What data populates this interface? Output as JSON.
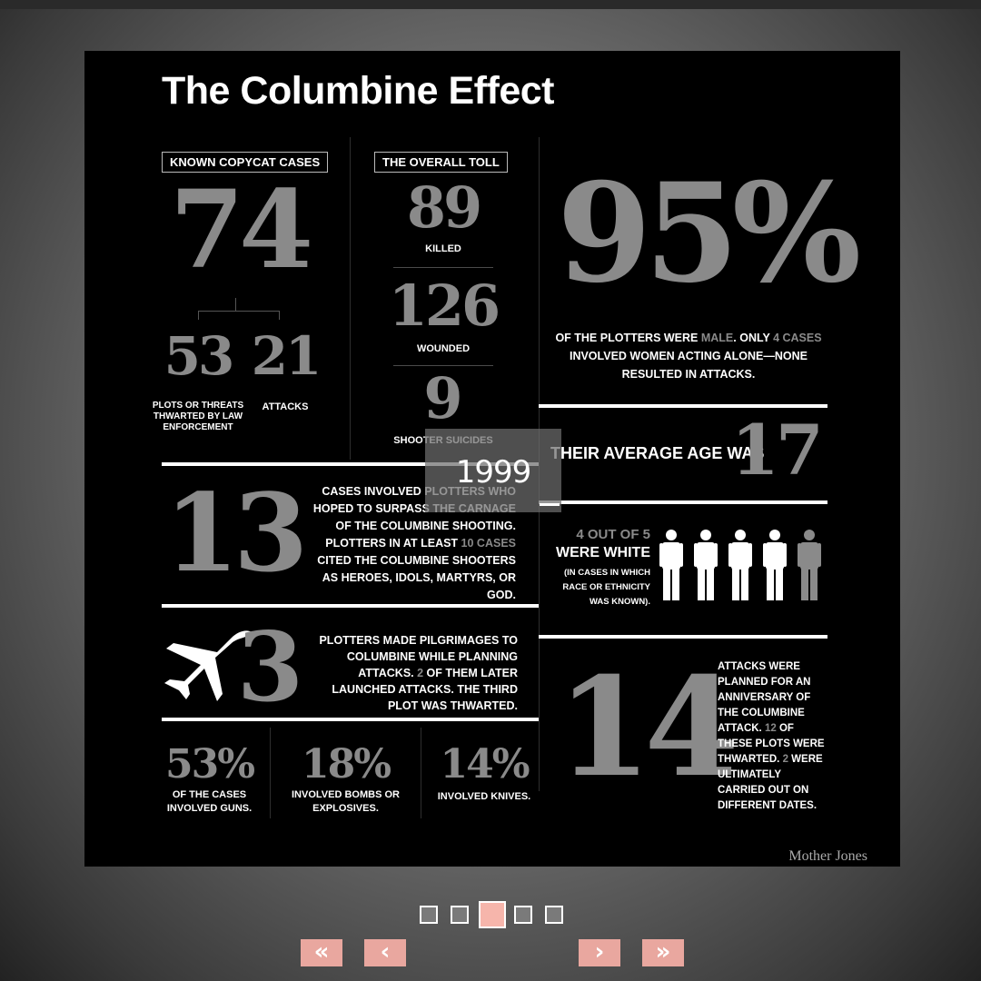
{
  "slide": {
    "title": "The Columbine Effect",
    "copycat": {
      "label": "KNOWN COPYCAT CASES",
      "total": "74",
      "thwarted_num": "53",
      "thwarted_label": "PLOTS OR THREATS THWARTED BY LAW ENFORCEMENT",
      "attacks_num": "21",
      "attacks_label": "ATTACKS"
    },
    "toll": {
      "label": "THE OVERALL TOLL",
      "killed_num": "89",
      "killed_label": "KILLED",
      "wounded_num": "126",
      "wounded_label": "WOUNDED",
      "suicides_num": "9",
      "suicides_label": "SHOOTER SUICIDES"
    },
    "male": {
      "percent": "95%",
      "text_a": "OF THE PLOTTERS WERE ",
      "text_b": "MALE",
      "text_c": ". ONLY ",
      "text_d": "4 CASES",
      "text_e": " INVOLVED WOMEN ACTING ALONE—NONE RESULTED IN ATTACKS."
    },
    "age": {
      "text": "THEIR AVERAGE AGE WAS",
      "num": "17"
    },
    "white": {
      "top": "4 OUT OF 5",
      "mid": "WERE WHITE",
      "note": "(IN CASES IN WHICH RACE OR ETHNICITY WAS KNOWN)."
    },
    "surpass": {
      "num": "13",
      "text_a": "CASES INVOLVED PLOTTERS WHO HOPED TO SURPASS THE CARNAGE OF THE COLUMBINE SHOOTING. PLOTTERS IN AT LEAST ",
      "text_b": "10 CASES",
      "text_c": " CITED THE COLUMBINE SHOOTERS AS HEROES, IDOLS, MARTYRS, OR GOD."
    },
    "pilgrim": {
      "num": "3",
      "text_a": "PLOTTERS MADE PILGRIMAGES TO COLUMBINE WHILE PLANNING ATTACKS. ",
      "text_b": "2",
      "text_c": " OF THEM LATER LAUNCHED ATTACKS. THE THIRD PLOT WAS THWARTED."
    },
    "anniversary": {
      "num": "14",
      "text_a": "ATTACKS WERE PLANNED FOR AN ANNIVERSARY OF THE COLUMBINE ATTACK. ",
      "text_b": "12",
      "text_c": " OF THESE PLOTS WERE THWARTED. ",
      "text_d": "2",
      "text_e": " WERE ULTIMATELY CARRIED OUT ON DIFFERENT DATES."
    },
    "weapons": {
      "guns_pct": "53%",
      "guns_label": "OF THE CASES INVOLVED GUNS.",
      "bombs_pct": "18%",
      "bombs_label": "INVOLVED BOMBS OR EXPLOSIVES.",
      "knives_pct": "14%",
      "knives_label": "INVOLVED KNIVES."
    },
    "credit": "Mother Jones"
  },
  "overlay": {
    "year": "1999"
  },
  "pager": {
    "count": 5,
    "active_index": 2
  },
  "nav": {
    "first": "«",
    "prev": "‹",
    "next": "›",
    "last": "»"
  },
  "colors": {
    "accent_grey": "#8a8a8a",
    "pager_active": "#f6b5ab",
    "nav_bg": "#e9a79f"
  }
}
